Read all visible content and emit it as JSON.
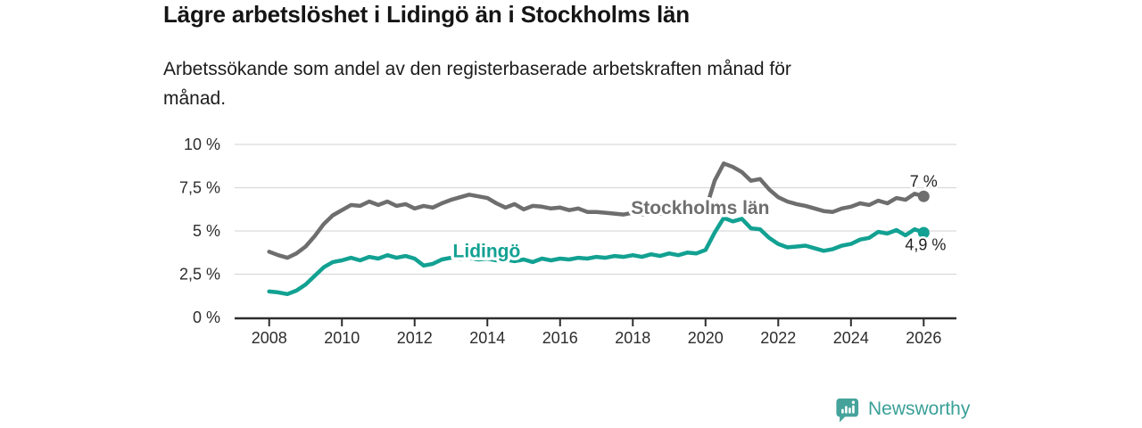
{
  "chart_data": {
    "type": "line",
    "title": "Lägre arbetslöshet i Lidingö än i Stockholms län",
    "subtitle_lines": [
      "Arbetssökande som andel av den registerbaserade arbetskraften månad för",
      "månad."
    ],
    "xlabel": "",
    "ylabel": "",
    "ylim": [
      0,
      10
    ],
    "xlim": [
      2007.05,
      2026.9
    ],
    "grid": "horizontal",
    "grid_color": "#d9d9d9",
    "axis_color": "#2d2d2d",
    "y_ticks": [
      {
        "v": 0,
        "label": "0 %"
      },
      {
        "v": 2.5,
        "label": "2,5 %"
      },
      {
        "v": 5,
        "label": "5 %"
      },
      {
        "v": 7.5,
        "label": "7,5 %"
      },
      {
        "v": 10,
        "label": "10 %"
      }
    ],
    "x_ticks": [
      {
        "v": 2008,
        "label": "2008"
      },
      {
        "v": 2010,
        "label": "2010"
      },
      {
        "v": 2012,
        "label": "2012"
      },
      {
        "v": 2014,
        "label": "2014"
      },
      {
        "v": 2016,
        "label": "2016"
      },
      {
        "v": 2018,
        "label": "2018"
      },
      {
        "v": 2020,
        "label": "2020"
      },
      {
        "v": 2022,
        "label": "2022"
      },
      {
        "v": 2024,
        "label": "2024"
      },
      {
        "v": 2026,
        "label": "2026"
      }
    ],
    "x": [
      2008,
      2008.25,
      2008.5,
      2008.75,
      2009,
      2009.25,
      2009.5,
      2009.75,
      2010,
      2010.25,
      2010.5,
      2010.75,
      2011,
      2011.25,
      2011.5,
      2011.75,
      2012,
      2012.25,
      2012.5,
      2012.75,
      2013,
      2013.25,
      2013.5,
      2013.75,
      2014,
      2014.25,
      2014.5,
      2014.75,
      2015,
      2015.25,
      2015.5,
      2015.75,
      2016,
      2016.25,
      2016.5,
      2016.75,
      2017,
      2017.25,
      2017.5,
      2017.75,
      2018,
      2018.25,
      2018.5,
      2018.75,
      2019,
      2019.25,
      2019.5,
      2019.75,
      2020,
      2020.25,
      2020.5,
      2020.75,
      2021,
      2021.25,
      2021.5,
      2021.75,
      2022,
      2022.25,
      2022.5,
      2022.75,
      2023,
      2023.25,
      2023.5,
      2023.75,
      2024,
      2024.25,
      2024.5,
      2024.75,
      2025,
      2025.25,
      2025.5,
      2025.75,
      2026
    ],
    "series": [
      {
        "name": "Stockholms län",
        "color": "#6e6e6e",
        "values": [
          3.8,
          3.6,
          3.45,
          3.7,
          4.1,
          4.7,
          5.4,
          5.9,
          6.2,
          6.5,
          6.45,
          6.7,
          6.5,
          6.7,
          6.45,
          6.55,
          6.3,
          6.45,
          6.35,
          6.6,
          6.8,
          6.95,
          7.1,
          7.0,
          6.9,
          6.6,
          6.35,
          6.55,
          6.25,
          6.45,
          6.4,
          6.3,
          6.35,
          6.2,
          6.3,
          6.1,
          6.1,
          6.05,
          6.0,
          5.95,
          6.05,
          5.95,
          6.05,
          6.0,
          6.0,
          6.05,
          6.0,
          6.1,
          6.2,
          7.9,
          8.9,
          8.7,
          8.4,
          7.9,
          8.0,
          7.4,
          6.95,
          6.7,
          6.55,
          6.45,
          6.3,
          6.15,
          6.1,
          6.3,
          6.4,
          6.6,
          6.5,
          6.75,
          6.6,
          6.9,
          6.8,
          7.15,
          7.0
        ]
      },
      {
        "name": "Lidingö",
        "color": "#12a192",
        "values": [
          1.5,
          1.45,
          1.35,
          1.55,
          1.9,
          2.4,
          2.9,
          3.2,
          3.3,
          3.45,
          3.3,
          3.5,
          3.4,
          3.6,
          3.45,
          3.55,
          3.4,
          3.0,
          3.1,
          3.35,
          3.45,
          3.4,
          3.45,
          3.35,
          3.4,
          3.3,
          3.35,
          3.25,
          3.35,
          3.2,
          3.4,
          3.3,
          3.4,
          3.35,
          3.45,
          3.4,
          3.5,
          3.45,
          3.55,
          3.5,
          3.6,
          3.5,
          3.65,
          3.55,
          3.7,
          3.6,
          3.75,
          3.7,
          3.9,
          4.9,
          5.75,
          5.55,
          5.7,
          5.15,
          5.1,
          4.6,
          4.25,
          4.05,
          4.1,
          4.15,
          4.0,
          3.85,
          3.95,
          4.15,
          4.25,
          4.5,
          4.6,
          4.95,
          4.85,
          5.05,
          4.75,
          5.1,
          4.9
        ]
      }
    ],
    "series_labels": [
      {
        "text": "Stockholms län",
        "x": 2017.95,
        "y": 6.35,
        "color": "#6e6e6e",
        "anchor": "start"
      },
      {
        "text": "Lidingö",
        "x": 2013.05,
        "y": 3.85,
        "color": "#12a192",
        "anchor": "start"
      }
    ],
    "end_labels": [
      {
        "text": "7 %",
        "x": 2026.0,
        "y": 7.85
      },
      {
        "text": "4,9 %",
        "x": 2026.05,
        "y": 4.2
      }
    ],
    "legend_position": "inline-labels"
  },
  "footer": {
    "brand": "Newsworthy",
    "brand_color": "#3aa098",
    "logo_color": "#45a39b"
  }
}
